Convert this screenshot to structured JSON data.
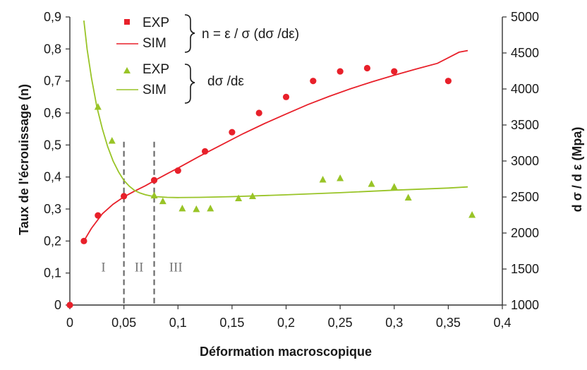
{
  "chart_data": {
    "type": "scatter",
    "title": "",
    "xlabel": "Déformation macroscopique",
    "ylabel": "Taux de l'écrouissage (n)",
    "y2label": "d σ / d ε  (Mpa)",
    "xlim": [
      0,
      0.4
    ],
    "ylim": [
      0,
      0.9
    ],
    "y2lim": [
      1000,
      5000
    ],
    "xticks": [
      "0",
      "0,05",
      "0,1",
      "0,15",
      "0,2",
      "0,25",
      "0,3",
      "0,35",
      "0,4"
    ],
    "yticks": [
      "0",
      "0,1",
      "0,2",
      "0,3",
      "0,4",
      "0,5",
      "0,6",
      "0,7",
      "0,8",
      "0,9"
    ],
    "y2ticks": [
      "1000",
      "1500",
      "2000",
      "2500",
      "3000",
      "3500",
      "4000",
      "4500",
      "5000"
    ],
    "grid": false,
    "legend": [
      {
        "group": "n = ε / σ  (dσ /dε)",
        "entries": [
          "EXP",
          "SIM"
        ]
      },
      {
        "group": "dσ /dε",
        "entries": [
          "EXP",
          "SIM"
        ]
      }
    ],
    "zones": {
      "labels": [
        "I",
        "II",
        "III"
      ],
      "boundaries_x": [
        0.05,
        0.078
      ]
    },
    "colors": {
      "n": "#e8202a",
      "dsde": "#99c427",
      "boundary": "#6b6b6b"
    },
    "series": [
      {
        "name": "EXP",
        "group": "n",
        "kind": "points",
        "marker": "circle",
        "axis": "left",
        "x": [
          0,
          0.013,
          0.026,
          0.05,
          0.078,
          0.1,
          0.125,
          0.15,
          0.175,
          0.2,
          0.225,
          0.25,
          0.275,
          0.3,
          0.35
        ],
        "y": [
          0,
          0.2,
          0.28,
          0.34,
          0.39,
          0.42,
          0.48,
          0.54,
          0.6,
          0.65,
          0.7,
          0.73,
          0.74,
          0.73,
          0.7
        ]
      },
      {
        "name": "SIM",
        "group": "n",
        "kind": "line",
        "axis": "left",
        "x": [
          0.013,
          0.02,
          0.03,
          0.04,
          0.05,
          0.06,
          0.07,
          0.08,
          0.09,
          0.1,
          0.12,
          0.14,
          0.16,
          0.18,
          0.2,
          0.22,
          0.24,
          0.26,
          0.28,
          0.3,
          0.32,
          0.34,
          0.36,
          0.368
        ],
        "y": [
          0.2,
          0.24,
          0.285,
          0.315,
          0.338,
          0.356,
          0.373,
          0.392,
          0.41,
          0.428,
          0.465,
          0.5,
          0.535,
          0.567,
          0.597,
          0.626,
          0.652,
          0.676,
          0.698,
          0.718,
          0.737,
          0.755,
          0.79,
          0.795
        ]
      },
      {
        "name": "EXP",
        "group": "dsde",
        "kind": "points",
        "marker": "triangle",
        "axis": "right",
        "x": [
          0.026,
          0.039,
          0.078,
          0.086,
          0.104,
          0.117,
          0.13,
          0.156,
          0.169,
          0.234,
          0.25,
          0.279,
          0.3,
          0.313,
          0.372
        ],
        "y": [
          3750,
          3280,
          2520,
          2440,
          2340,
          2330,
          2340,
          2480,
          2510,
          2740,
          2760,
          2680,
          2640,
          2490,
          2250
        ]
      },
      {
        "name": "SIM",
        "group": "dsde",
        "kind": "line",
        "axis": "right",
        "x": [
          0.013,
          0.016,
          0.02,
          0.025,
          0.03,
          0.035,
          0.04,
          0.045,
          0.05,
          0.055,
          0.06,
          0.065,
          0.07,
          0.075,
          0.08,
          0.09,
          0.1,
          0.12,
          0.15,
          0.2,
          0.25,
          0.3,
          0.35,
          0.368
        ],
        "y": [
          4950,
          4550,
          4150,
          3750,
          3450,
          3200,
          3000,
          2850,
          2730,
          2650,
          2590,
          2555,
          2530,
          2515,
          2505,
          2495,
          2492,
          2495,
          2505,
          2530,
          2560,
          2595,
          2625,
          2640
        ]
      }
    ]
  }
}
